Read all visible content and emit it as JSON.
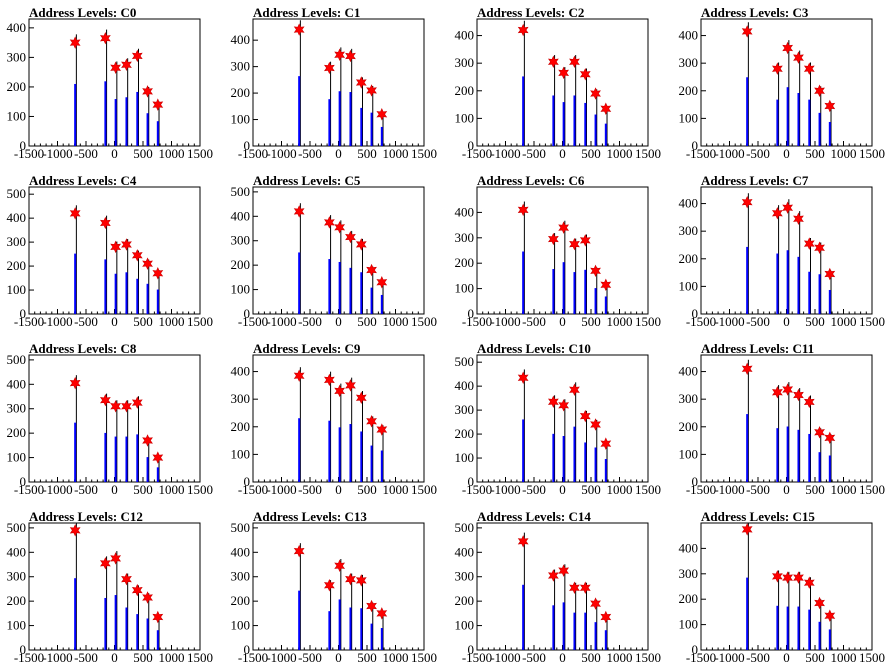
{
  "chart_data": [
    {
      "type": "bar",
      "title": "Address Levels: C0",
      "xlim": [
        -1500,
        1500
      ],
      "ylim": [
        0,
        430
      ],
      "x_ticks": [
        -1500,
        -1000,
        -500,
        0,
        500,
        1000,
        1500
      ],
      "y_ticks": [
        0,
        100,
        200,
        300,
        400
      ],
      "peaks_x": [
        -690,
        -160,
        20,
        210,
        400,
        580,
        760
      ],
      "peaks_y": [
        350,
        365,
        265,
        275,
        305,
        185,
        140
      ]
    },
    {
      "type": "bar",
      "title": "Address Levels: C1",
      "xlim": [
        -1500,
        1500
      ],
      "ylim": [
        0,
        480
      ],
      "x_ticks": [
        -1500,
        -1000,
        -500,
        0,
        500,
        1000,
        1500
      ],
      "y_ticks": [
        0,
        100,
        200,
        300,
        400
      ],
      "peaks_x": [
        -690,
        -160,
        20,
        210,
        400,
        580,
        760
      ],
      "peaks_y": [
        440,
        295,
        345,
        340,
        240,
        210,
        120
      ]
    },
    {
      "type": "bar",
      "title": "Address Levels: C2",
      "xlim": [
        -1500,
        1500
      ],
      "ylim": [
        0,
        460
      ],
      "x_ticks": [
        -1500,
        -1000,
        -500,
        0,
        500,
        1000,
        1500
      ],
      "y_ticks": [
        0,
        100,
        200,
        300,
        400
      ],
      "peaks_x": [
        -690,
        -160,
        20,
        210,
        400,
        580,
        760
      ],
      "peaks_y": [
        420,
        305,
        265,
        305,
        260,
        190,
        135
      ]
    },
    {
      "type": "bar",
      "title": "Address Levels: C3",
      "xlim": [
        -1500,
        1500
      ],
      "ylim": [
        0,
        460
      ],
      "x_ticks": [
        -1500,
        -1000,
        -500,
        0,
        500,
        1000,
        1500
      ],
      "y_ticks": [
        0,
        100,
        200,
        300,
        400
      ],
      "peaks_x": [
        -690,
        -160,
        20,
        210,
        400,
        580,
        760
      ],
      "peaks_y": [
        415,
        280,
        355,
        320,
        280,
        200,
        145
      ]
    },
    {
      "type": "bar",
      "title": "Address Levels: C4",
      "xlim": [
        -1500,
        1500
      ],
      "ylim": [
        0,
        530
      ],
      "x_ticks": [
        -1500,
        -1000,
        -500,
        0,
        500,
        1000,
        1500
      ],
      "y_ticks": [
        0,
        100,
        200,
        300,
        400,
        500
      ],
      "peaks_x": [
        -690,
        -160,
        20,
        210,
        400,
        580,
        760
      ],
      "peaks_y": [
        420,
        380,
        280,
        290,
        245,
        210,
        170
      ]
    },
    {
      "type": "bar",
      "title": "Address Levels: C5",
      "xlim": [
        -1500,
        1500
      ],
      "ylim": [
        0,
        520
      ],
      "x_ticks": [
        -1500,
        -1000,
        -500,
        0,
        500,
        1000,
        1500
      ],
      "y_ticks": [
        0,
        100,
        200,
        300,
        400,
        500
      ],
      "peaks_x": [
        -690,
        -160,
        20,
        210,
        400,
        580,
        760
      ],
      "peaks_y": [
        420,
        375,
        355,
        315,
        285,
        180,
        130
      ]
    },
    {
      "type": "bar",
      "title": "Address Levels: C6",
      "xlim": [
        -1500,
        1500
      ],
      "ylim": [
        0,
        500
      ],
      "x_ticks": [
        -1500,
        -1000,
        -500,
        0,
        500,
        1000,
        1500
      ],
      "y_ticks": [
        0,
        100,
        200,
        300,
        400
      ],
      "peaks_x": [
        -690,
        -160,
        20,
        210,
        400,
        580,
        760
      ],
      "peaks_y": [
        410,
        295,
        340,
        275,
        290,
        170,
        115
      ]
    },
    {
      "type": "bar",
      "title": "Address Levels: C7",
      "xlim": [
        -1500,
        1500
      ],
      "ylim": [
        0,
        460
      ],
      "x_ticks": [
        -1500,
        -1000,
        -500,
        0,
        500,
        1000,
        1500
      ],
      "y_ticks": [
        0,
        100,
        200,
        300,
        400
      ],
      "peaks_x": [
        -690,
        -160,
        20,
        210,
        400,
        580,
        760
      ],
      "peaks_y": [
        405,
        365,
        385,
        345,
        255,
        240,
        145
      ]
    },
    {
      "type": "bar",
      "title": "Address Levels: C8",
      "xlim": [
        -1500,
        1500
      ],
      "ylim": [
        0,
        520
      ],
      "x_ticks": [
        -1500,
        -1000,
        -500,
        0,
        500,
        1000,
        1500
      ],
      "y_ticks": [
        0,
        100,
        200,
        300,
        400,
        500
      ],
      "peaks_x": [
        -690,
        -160,
        20,
        210,
        400,
        580,
        760
      ],
      "peaks_y": [
        405,
        335,
        310,
        310,
        325,
        170,
        100
      ]
    },
    {
      "type": "bar",
      "title": "Address Levels: C9",
      "xlim": [
        -1500,
        1500
      ],
      "ylim": [
        0,
        460
      ],
      "x_ticks": [
        -1500,
        -1000,
        -500,
        0,
        500,
        1000,
        1500
      ],
      "y_ticks": [
        0,
        100,
        200,
        300,
        400
      ],
      "peaks_x": [
        -690,
        -160,
        20,
        210,
        400,
        580,
        760
      ],
      "peaks_y": [
        385,
        370,
        330,
        350,
        305,
        220,
        190
      ]
    },
    {
      "type": "bar",
      "title": "Address Levels: C10",
      "xlim": [
        -1500,
        1500
      ],
      "ylim": [
        0,
        530
      ],
      "x_ticks": [
        -1500,
        -1000,
        -500,
        0,
        500,
        1000,
        1500
      ],
      "y_ticks": [
        0,
        100,
        200,
        300,
        400,
        500
      ],
      "peaks_x": [
        -690,
        -160,
        20,
        210,
        400,
        580,
        760
      ],
      "peaks_y": [
        435,
        335,
        320,
        385,
        275,
        240,
        160
      ]
    },
    {
      "type": "bar",
      "title": "Address Levels: C11",
      "xlim": [
        -1500,
        1500
      ],
      "ylim": [
        0,
        460
      ],
      "x_ticks": [
        -1500,
        -1000,
        -500,
        0,
        500,
        1000,
        1500
      ],
      "y_ticks": [
        0,
        100,
        200,
        300,
        400
      ],
      "peaks_x": [
        -690,
        -160,
        20,
        210,
        400,
        580,
        760
      ],
      "peaks_y": [
        410,
        325,
        335,
        315,
        290,
        180,
        160
      ]
    },
    {
      "type": "bar",
      "title": "Address Levels: C12",
      "xlim": [
        -1500,
        1500
      ],
      "ylim": [
        0,
        520
      ],
      "x_ticks": [
        -1500,
        -1000,
        -500,
        0,
        500,
        1000,
        1500
      ],
      "y_ticks": [
        0,
        100,
        200,
        300,
        400,
        500
      ],
      "peaks_x": [
        -690,
        -160,
        20,
        210,
        400,
        580,
        760
      ],
      "peaks_y": [
        490,
        355,
        375,
        290,
        245,
        215,
        135
      ]
    },
    {
      "type": "bar",
      "title": "Address Levels: C13",
      "xlim": [
        -1500,
        1500
      ],
      "ylim": [
        0,
        520
      ],
      "x_ticks": [
        -1500,
        -1000,
        -500,
        0,
        500,
        1000,
        1500
      ],
      "y_ticks": [
        0,
        100,
        200,
        300,
        400,
        500
      ],
      "peaks_x": [
        -690,
        -160,
        20,
        210,
        400,
        580,
        760
      ],
      "peaks_y": [
        405,
        265,
        345,
        290,
        285,
        180,
        150
      ]
    },
    {
      "type": "bar",
      "title": "Address Levels: C14",
      "xlim": [
        -1500,
        1500
      ],
      "ylim": [
        0,
        520
      ],
      "x_ticks": [
        -1500,
        -1000,
        -500,
        0,
        500,
        1000,
        1500
      ],
      "y_ticks": [
        0,
        100,
        200,
        300,
        400,
        500
      ],
      "peaks_x": [
        -690,
        -160,
        20,
        210,
        400,
        580,
        760
      ],
      "peaks_y": [
        445,
        305,
        325,
        255,
        255,
        190,
        135
      ]
    },
    {
      "type": "bar",
      "title": "Address Levels: C15",
      "xlim": [
        -1500,
        1500
      ],
      "ylim": [
        0,
        500
      ],
      "x_ticks": [
        -1500,
        -1000,
        -500,
        0,
        500,
        1000,
        1500
      ],
      "y_ticks": [
        0,
        100,
        200,
        300,
        400
      ],
      "peaks_x": [
        -690,
        -160,
        20,
        210,
        400,
        580,
        760
      ],
      "peaks_y": [
        475,
        290,
        285,
        285,
        265,
        185,
        135
      ]
    }
  ],
  "colors": {
    "bar": "#0000ff",
    "outline": "#000000",
    "marker": "#ff0000",
    "marker_edge": "#cc0000"
  }
}
